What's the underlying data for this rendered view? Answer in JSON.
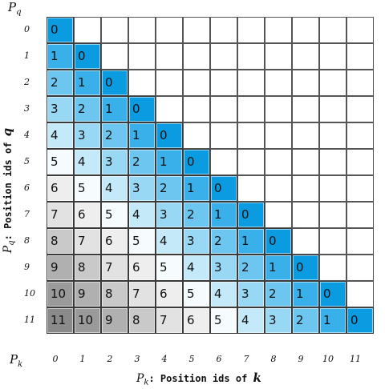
{
  "corner_q": {
    "base": "P",
    "sub": "q"
  },
  "corner_k": {
    "base": "P",
    "sub": "k"
  },
  "y_axis_label": {
    "sym": "P",
    "sub": "q",
    "text": ": Position ids of ",
    "var": "q"
  },
  "x_axis_label": {
    "sym": "P",
    "sub": "k",
    "text": ": Position ids of ",
    "var": "k"
  },
  "row_ids": [
    "0",
    "1",
    "2",
    "3",
    "4",
    "5",
    "6",
    "7",
    "8",
    "9",
    "10",
    "11"
  ],
  "col_ids": [
    "0",
    "1",
    "2",
    "3",
    "4",
    "5",
    "6",
    "7",
    "8",
    "9",
    "10",
    "11"
  ],
  "matrix": [
    [
      "0"
    ],
    [
      "1",
      "0"
    ],
    [
      "2",
      "1",
      "0"
    ],
    [
      "3",
      "2",
      "1",
      "0"
    ],
    [
      "4",
      "3",
      "2",
      "1",
      "0"
    ],
    [
      "5",
      "4",
      "3",
      "2",
      "1",
      "0"
    ],
    [
      "6",
      "5",
      "4",
      "3",
      "2",
      "1",
      "0"
    ],
    [
      "7",
      "6",
      "5",
      "4",
      "3",
      "2",
      "1",
      "0"
    ],
    [
      "8",
      "7",
      "6",
      "5",
      "4",
      "3",
      "2",
      "1",
      "0"
    ],
    [
      "9",
      "8",
      "7",
      "6",
      "5",
      "4",
      "3",
      "2",
      "1",
      "0"
    ],
    [
      "10",
      "9",
      "8",
      "7",
      "6",
      "5",
      "4",
      "3",
      "2",
      "1",
      "0"
    ],
    [
      "11",
      "10",
      "9",
      "8",
      "7",
      "6",
      "5",
      "4",
      "3",
      "2",
      "1",
      "0"
    ]
  ],
  "colors": {
    "0": "#0a9be0",
    "1": "#3ab0ea",
    "2": "#6cc6f0",
    "3": "#98d8f5",
    "4": "#c4e9f9",
    "5": "#f6fbfe",
    "6": "#eeeeee",
    "7": "#e2e2e2",
    "8": "#c9c9c9",
    "9": "#b0b0b0",
    "10": "#9a9a9a",
    "11": "#8a8a8a"
  }
}
